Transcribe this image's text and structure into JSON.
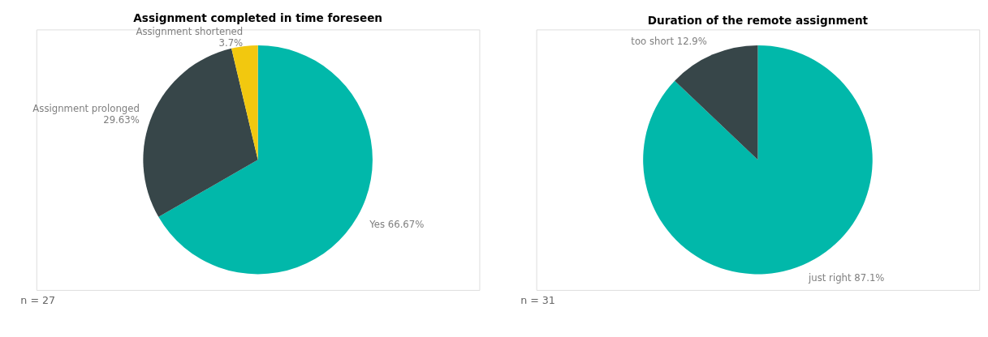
{
  "chart_data": [
    {
      "type": "pie",
      "title": "Assignment completed in time foreseen",
      "categories": [
        "Yes",
        "Assignment prolonged",
        "Assignment shortened"
      ],
      "values": [
        66.67,
        29.63,
        3.7
      ],
      "colors": [
        "#01b8aa",
        "#374649",
        "#f2c80f"
      ],
      "value_labels": [
        "66.67%",
        "29.63%",
        "3.7%"
      ],
      "annotations": [
        "n = 27"
      ],
      "legend": false
    },
    {
      "type": "pie",
      "title": "Duration of the remote assignment",
      "categories": [
        "just right",
        "too short"
      ],
      "values": [
        87.1,
        12.9
      ],
      "colors": [
        "#01b8aa",
        "#374649"
      ],
      "value_labels": [
        "87.1%",
        "12.9%"
      ],
      "annotations": [
        "n = 31"
      ],
      "legend": false
    }
  ]
}
